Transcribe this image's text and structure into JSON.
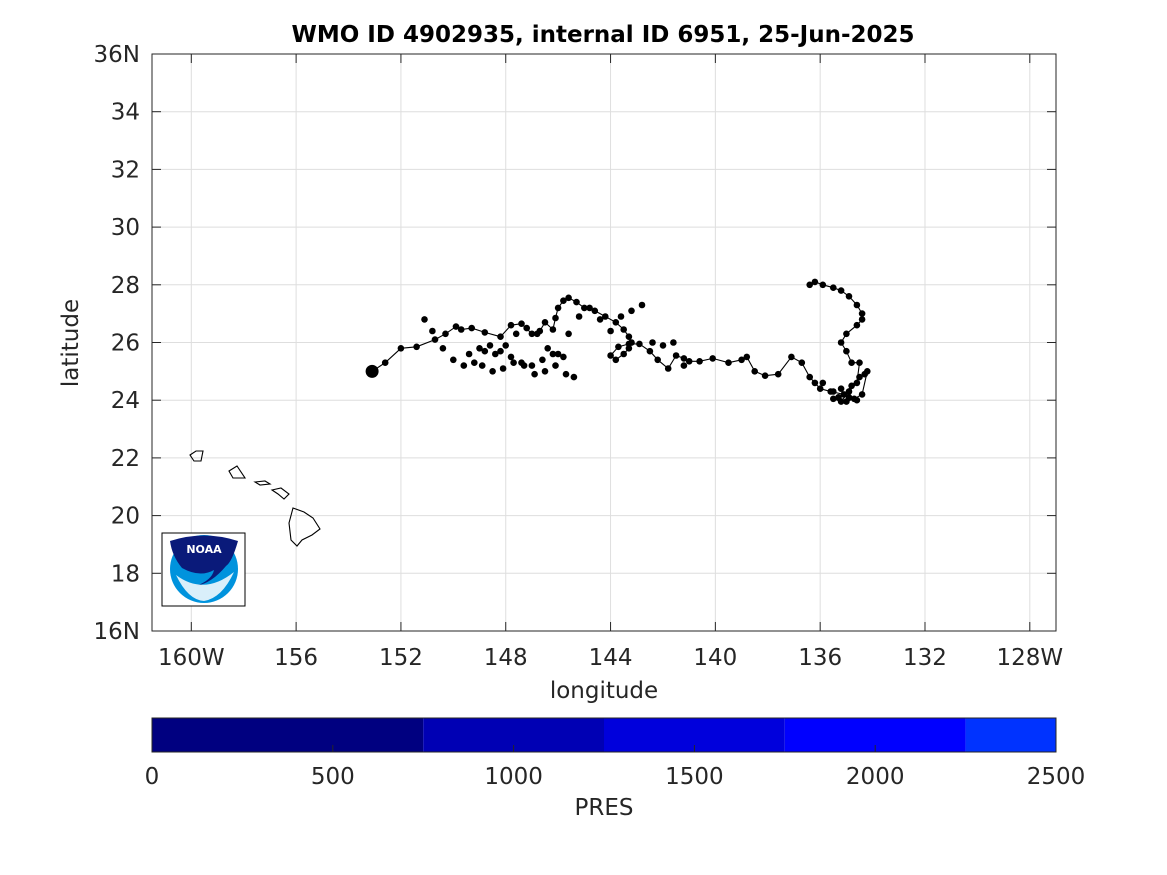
{
  "chart_data": {
    "type": "scatter",
    "title": "WMO ID 4902935, internal ID 6951, 25-Jun-2025",
    "xlabel": "longitude",
    "ylabel": "latitude",
    "xlim": [
      -161.5,
      -127
    ],
    "ylim": [
      16,
      36
    ],
    "x_ticks": [
      -160,
      -156,
      -152,
      -148,
      -144,
      -140,
      -136,
      -132,
      -128
    ],
    "x_tick_labels": [
      "160W",
      "156",
      "152",
      "148",
      "144",
      "140",
      "136",
      "132",
      "128W"
    ],
    "y_ticks": [
      16,
      18,
      20,
      22,
      24,
      26,
      28,
      30,
      32,
      34,
      36
    ],
    "y_tick_labels": [
      "16N",
      "18",
      "20",
      "22",
      "24",
      "26",
      "28",
      "30",
      "32",
      "34",
      "36N"
    ],
    "grid": true,
    "track_color": "#000000",
    "deployment_point": {
      "lon": -153.1,
      "lat": 25.0
    },
    "series": [
      {
        "x": [
          -153.1,
          -152.6,
          -152.0,
          -151.4,
          -150.7,
          -150.3,
          -149.9,
          -149.7,
          -149.3,
          -148.8,
          -148.2,
          -147.8,
          -147.4,
          -147.0,
          -146.7,
          -146.5,
          -146.2,
          -146.1,
          -146.0,
          -145.8,
          -145.6,
          -145.3,
          -145.0,
          -144.6,
          -144.2,
          -143.8,
          -143.5,
          -143.3,
          -143.2,
          -143.3,
          -143.5,
          -143.8,
          -144.0,
          -143.7,
          -143.3,
          -142.9,
          -142.5,
          -142.2,
          -141.8,
          -141.5,
          -141.2,
          -141.0,
          -140.6,
          -140.1,
          -139.5,
          -139.0,
          -138.8,
          -138.5,
          -138.1,
          -137.6,
          -137.1,
          -136.7,
          -136.4,
          -136.2,
          -136.0,
          -135.6,
          -135.1,
          -134.8,
          -134.5,
          -134.2,
          -134.4,
          -134.7,
          -135.0,
          -135.3,
          -135.5,
          -135.2,
          -134.9,
          -134.6,
          -134.5,
          -134.8,
          -135.0,
          -135.2,
          -135.0,
          -134.6,
          -134.4,
          -134.4,
          -134.6,
          -134.9,
          -135.2,
          -135.5,
          -135.9,
          -136.2,
          -136.4
        ],
        "y": [
          25.0,
          25.3,
          25.8,
          25.85,
          26.1,
          26.3,
          26.55,
          26.45,
          26.5,
          26.35,
          26.2,
          26.6,
          26.65,
          26.3,
          26.4,
          26.7,
          26.45,
          26.85,
          27.2,
          27.45,
          27.55,
          27.4,
          27.2,
          27.1,
          26.9,
          26.7,
          26.45,
          26.2,
          26.0,
          25.8,
          25.6,
          25.4,
          25.55,
          25.85,
          25.95,
          25.95,
          25.7,
          25.4,
          25.1,
          25.55,
          25.45,
          25.35,
          25.35,
          25.45,
          25.3,
          25.4,
          25.5,
          25.0,
          24.85,
          24.9,
          25.5,
          25.3,
          24.8,
          24.6,
          24.4,
          24.3,
          24.2,
          24.5,
          24.8,
          25.0,
          24.2,
          24.05,
          23.95,
          24.1,
          24.05,
          23.95,
          24.3,
          24.6,
          25.3,
          25.3,
          25.7,
          26.0,
          26.3,
          26.6,
          26.8,
          27.0,
          27.3,
          27.6,
          27.8,
          27.9,
          28.0,
          28.1,
          28.0
        ]
      },
      {
        "x": [
          -151.1,
          -150.8,
          -150.4,
          -150.0,
          -149.6,
          -149.2,
          -148.8,
          -148.4,
          -148.0,
          -147.6,
          -147.2,
          -146.8,
          -146.4,
          -146.0,
          -145.6,
          -145.2,
          -144.8,
          -144.4,
          -144.0,
          -143.6,
          -143.2,
          -142.8,
          -142.4,
          -142.0,
          -141.6,
          -141.2,
          -149.4,
          -149.0,
          -148.6,
          -148.2,
          -147.8,
          -147.4,
          -147.0,
          -146.6,
          -146.2,
          -145.8,
          -148.9,
          -148.5,
          -148.1,
          -147.7,
          -147.3,
          -146.9,
          -146.5,
          -146.1,
          -145.7,
          -145.4,
          -135.9,
          -135.5,
          -135.2,
          -134.9,
          -134.6,
          -134.3
        ],
        "y": [
          26.8,
          26.4,
          25.8,
          25.4,
          25.2,
          25.3,
          25.7,
          25.6,
          25.9,
          26.3,
          26.5,
          26.3,
          25.8,
          25.6,
          26.3,
          26.9,
          27.2,
          26.8,
          26.4,
          26.9,
          27.1,
          27.3,
          26.0,
          25.9,
          26.0,
          25.2,
          25.6,
          25.8,
          25.9,
          25.7,
          25.5,
          25.3,
          25.2,
          25.4,
          25.6,
          25.5,
          25.2,
          25.0,
          25.1,
          25.3,
          25.2,
          24.9,
          25.0,
          25.2,
          24.9,
          24.8,
          24.6,
          24.3,
          24.4,
          24.1,
          24.0,
          24.9
        ]
      }
    ],
    "colorbar": {
      "label": "PRES",
      "range": [
        0,
        2500
      ],
      "ticks": [
        0,
        500,
        1000,
        1500,
        2000,
        2500
      ],
      "tick_labels": [
        "0",
        "500",
        "1000",
        "1500",
        "2000",
        "2500"
      ],
      "segments": [
        {
          "from": 0,
          "to": 750,
          "color": "#000080"
        },
        {
          "from": 750,
          "to": 1250,
          "color": "#0000B4"
        },
        {
          "from": 1250,
          "to": 1750,
          "color": "#0000DC"
        },
        {
          "from": 1750,
          "to": 2250,
          "color": "#0000FF"
        },
        {
          "from": 2250,
          "to": 2500,
          "color": "#0033FF"
        }
      ]
    }
  },
  "logo": {
    "text": "NOAA",
    "colors": {
      "dark": "#0A1A7A",
      "light": "#0093DD"
    }
  }
}
